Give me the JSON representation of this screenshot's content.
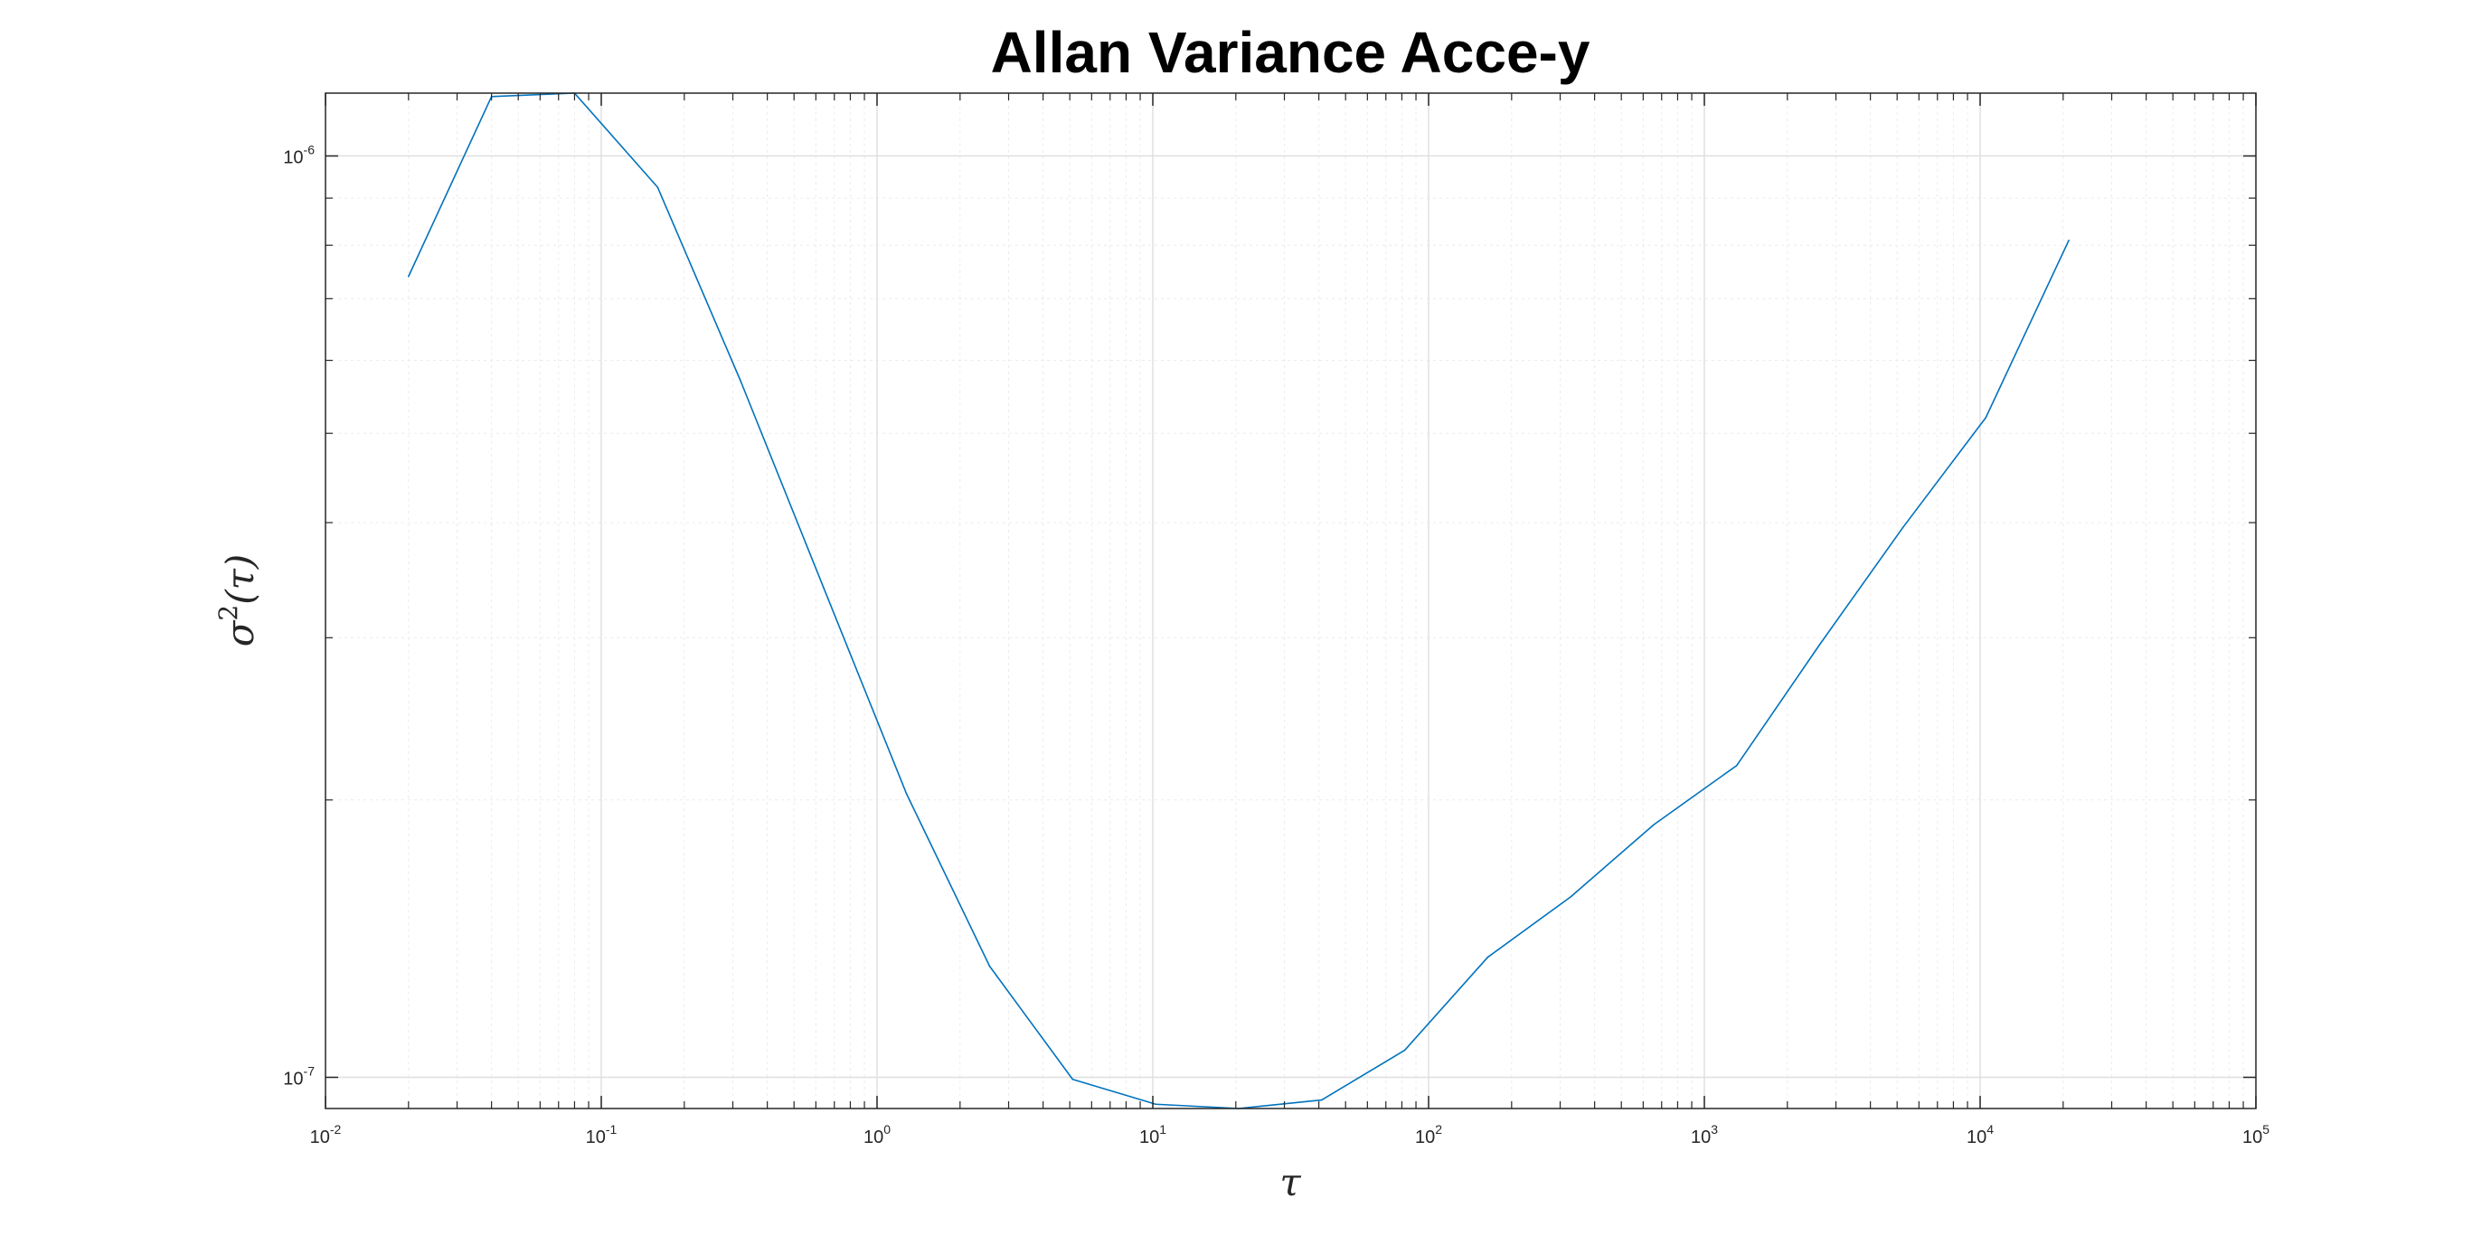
{
  "chart_data": {
    "type": "line",
    "title": "Allan Variance Acce-y",
    "xlabel": "τ",
    "ylabel": "σ²(τ)",
    "xscale": "log",
    "yscale": "log",
    "xlim": [
      0.01,
      100000
    ],
    "ylim": [
      9.25e-08,
      1.17e-06
    ],
    "grid": true,
    "minor_grid": true,
    "x_ticks": [
      {
        "base": "10",
        "exp": "-2",
        "value": 0.01
      },
      {
        "base": "10",
        "exp": "-1",
        "value": 0.1
      },
      {
        "base": "10",
        "exp": "0",
        "value": 1
      },
      {
        "base": "10",
        "exp": "1",
        "value": 10
      },
      {
        "base": "10",
        "exp": "2",
        "value": 100
      },
      {
        "base": "10",
        "exp": "3",
        "value": 1000
      },
      {
        "base": "10",
        "exp": "4",
        "value": 10000
      },
      {
        "base": "10",
        "exp": "5",
        "value": 100000
      }
    ],
    "y_ticks": [
      {
        "base": "10",
        "exp": "-7",
        "value": 1e-07
      },
      {
        "base": "10",
        "exp": "-6",
        "value": 1e-06
      }
    ],
    "series": [
      {
        "color": "#0072BD",
        "x": [
          0.02,
          0.04,
          0.08,
          0.16,
          0.32,
          0.64,
          1.28,
          2.56,
          5.12,
          10.24,
          20.48,
          40.96,
          81.92,
          163.84,
          327.68,
          655.36,
          1310.72,
          2621.44,
          5242.88,
          10485.76,
          20971.52
        ],
        "y": [
          7.4e-07,
          1.16e-06,
          1.19e-06,
          9.25e-07,
          5.7e-07,
          3.4e-07,
          2.03e-07,
          1.32e-07,
          9.95e-08,
          9.35e-08,
          9.25e-08,
          9.45e-08,
          1.07e-07,
          1.35e-07,
          1.57e-07,
          1.88e-07,
          2.18e-07,
          2.95e-07,
          3.95e-07,
          5.2e-07,
          8.1e-07
        ]
      }
    ]
  }
}
